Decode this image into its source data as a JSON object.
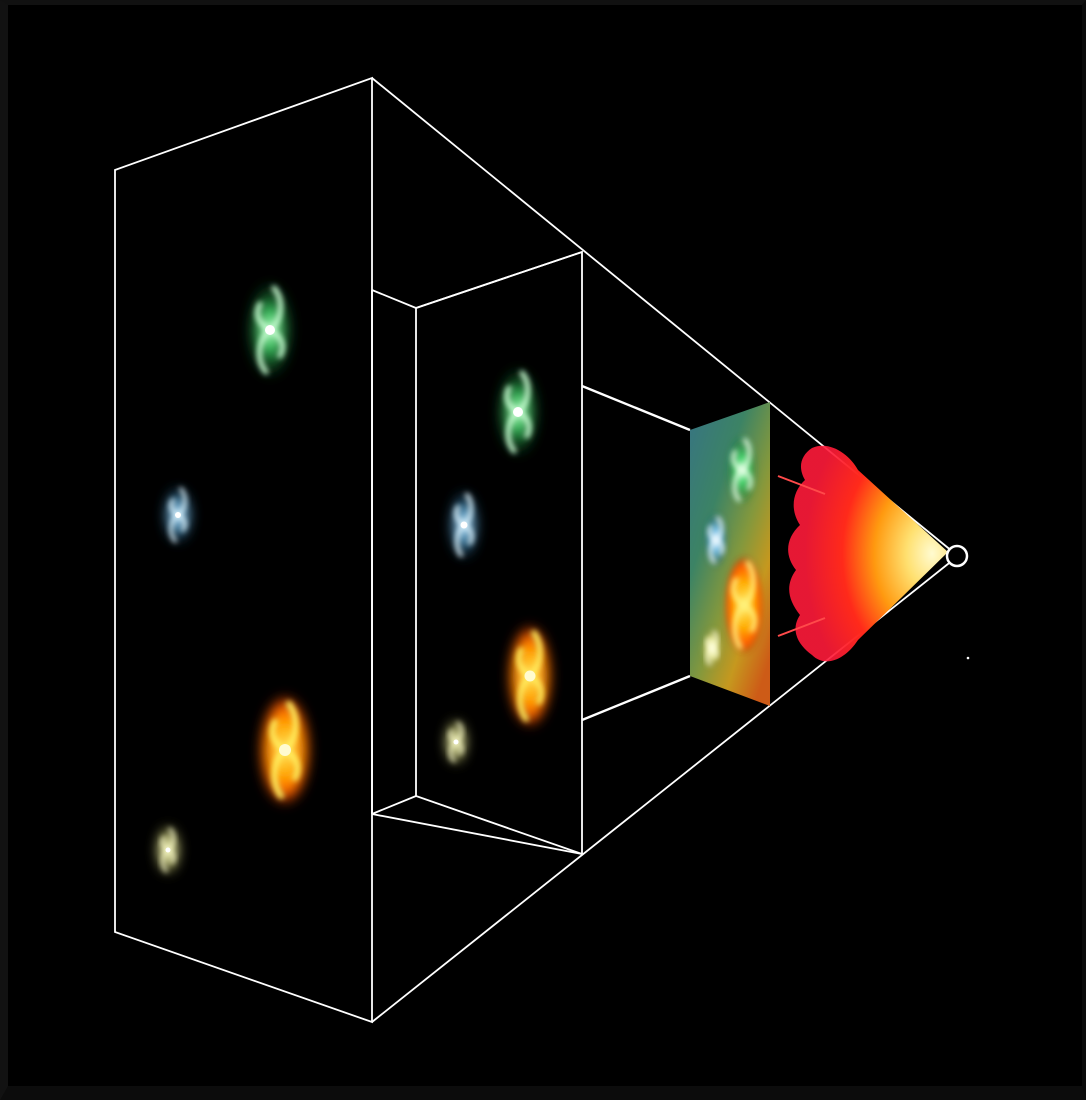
{
  "diagram": {
    "subject": "light-cone-galaxy-projection",
    "colors": {
      "background": "#000000",
      "outline": "#ffffff",
      "galaxy_green": "#3fd86a",
      "galaxy_blue": "#5ab6e8",
      "galaxy_orange": "#ff7a10",
      "galaxy_yellow": "#f2f08a",
      "glow_red": "#ff1a1a",
      "glow_yellow": "#fff6b0",
      "observer": "#ffffff"
    },
    "galaxies": [
      {
        "name": "green-spiral",
        "color": "green"
      },
      {
        "name": "blue-spiral",
        "color": "blue"
      },
      {
        "name": "orange-spiral",
        "color": "orange"
      },
      {
        "name": "yellow-spiral",
        "color": "yellow"
      }
    ],
    "icons": [
      "spiral-galaxy-icon",
      "observer-dot-icon"
    ]
  }
}
